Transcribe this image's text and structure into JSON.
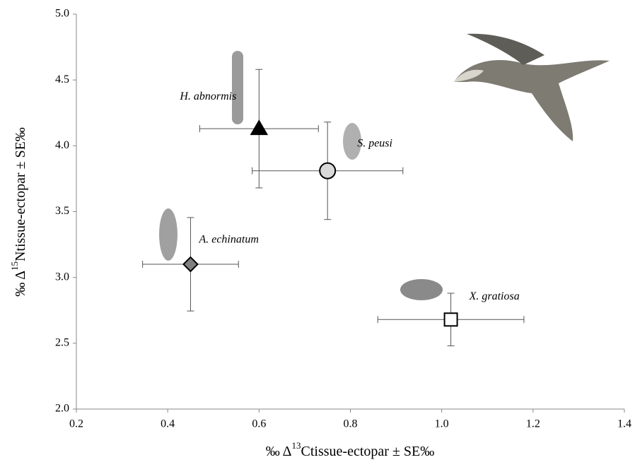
{
  "chart_data": {
    "type": "scatter",
    "x_label": {
      "prefix": "‰ Δ",
      "superscript": "13",
      "suffix": "Ctissue-ectopar ± SE‰"
    },
    "y_label": {
      "prefix": "‰ Δ",
      "superscript": "15",
      "suffix": "Ntissue-ectopar ± SE‰"
    },
    "xlim": [
      0.2,
      1.4
    ],
    "xticks": [
      0.2,
      0.4,
      0.6,
      0.8,
      {
        "value": 1.0,
        "label": "1.0"
      },
      1.2,
      1.4
    ],
    "ylim": [
      2.0,
      5.0
    ],
    "yticks": [
      {
        "value": 2,
        "label": "2.0"
      },
      2.5,
      {
        "value": 3,
        "label": "3.0"
      },
      3.5,
      {
        "value": 4,
        "label": "4.0"
      },
      4.5,
      {
        "value": 5,
        "label": "5.0"
      }
    ],
    "series": [
      {
        "name": "H. abnormis",
        "marker": "triangle",
        "color": "#000000",
        "x": [
          0.6
        ],
        "y": [
          4.13
        ],
        "xerr": [
          0.13
        ],
        "yerr": [
          0.45
        ]
      },
      {
        "name": "S. peusi",
        "marker": "circle",
        "color": "#d9d9d9",
        "x": [
          0.75
        ],
        "y": [
          3.81
        ],
        "xerr": [
          0.165
        ],
        "yerr": [
          0.37
        ]
      },
      {
        "name": "A. echinatum",
        "marker": "diamond",
        "color": "#808080",
        "x": [
          0.45
        ],
        "y": [
          3.1
        ],
        "xerr": [
          0.105
        ],
        "yerr": [
          0.355
        ]
      },
      {
        "name": "X. gratiosa",
        "marker": "square",
        "color": "#ffffff",
        "x": [
          1.02
        ],
        "y": [
          2.68
        ],
        "xerr": [
          0.16
        ],
        "yerr": [
          0.2
        ]
      }
    ]
  }
}
